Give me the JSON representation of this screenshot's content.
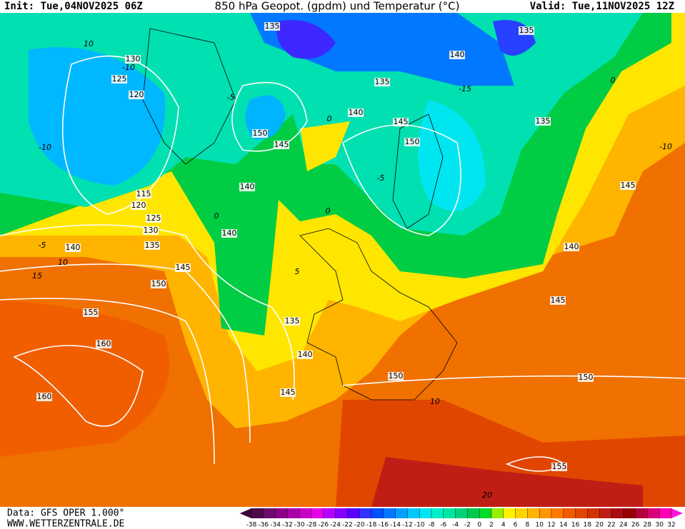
{
  "header": {
    "init": "Init: Tue,04NOV2025 06Z",
    "title": "850 hPa Geopot. (gpdm) und Temperatur (°C)",
    "valid": "Valid: Tue,11NOV2025 12Z"
  },
  "geopotential_labels": [
    "135",
    "135",
    "140",
    "135",
    "130",
    "125",
    "120",
    "150",
    "145",
    "140",
    "145",
    "150",
    "135",
    "140",
    "115",
    "120",
    "125",
    "130",
    "135",
    "140",
    "140",
    "145",
    "140",
    "145",
    "150",
    "145",
    "155",
    "135",
    "160",
    "140",
    "150",
    "150",
    "145",
    "160",
    "155"
  ],
  "temperature_labels": [
    "10",
    "-10",
    "-10",
    "-5",
    "0",
    "-5",
    "0",
    "0",
    "-5",
    "10",
    "15",
    "5",
    "10",
    "-10",
    "0",
    "-15",
    "20"
  ],
  "colorbar": {
    "ticks": [
      -38,
      -36,
      -34,
      -32,
      -30,
      -28,
      -26,
      -24,
      -22,
      -20,
      -18,
      -16,
      -14,
      -12,
      -10,
      -8,
      -6,
      -4,
      -2,
      0,
      2,
      4,
      6,
      8,
      10,
      12,
      14,
      16,
      18,
      20,
      22,
      24,
      26,
      28,
      30,
      32
    ],
    "colors": [
      "#4b0a4b",
      "#6e0a6e",
      "#8c008c",
      "#aa00aa",
      "#c800c8",
      "#e600e6",
      "#b400ff",
      "#8200ff",
      "#5a00ff",
      "#3232ff",
      "#0050ff",
      "#0078ff",
      "#00a0ff",
      "#00c8ff",
      "#00e6f0",
      "#00f0c8",
      "#00e6a0",
      "#00d278",
      "#00c850",
      "#00dc28",
      "#96f000",
      "#fff000",
      "#ffd200",
      "#ffb400",
      "#ff9600",
      "#ff7800",
      "#f05a00",
      "#e14600",
      "#d23200",
      "#be1e14",
      "#aa0a14",
      "#960000",
      "#b4003c",
      "#dc0078",
      "#ff00b4"
    ],
    "low_color": "#3c003c",
    "high_color": "#ff14dc"
  },
  "footer": {
    "data": "Data: GFS OPER 1.000°",
    "site": "WWW.WETTERZENTRALE.DE"
  }
}
